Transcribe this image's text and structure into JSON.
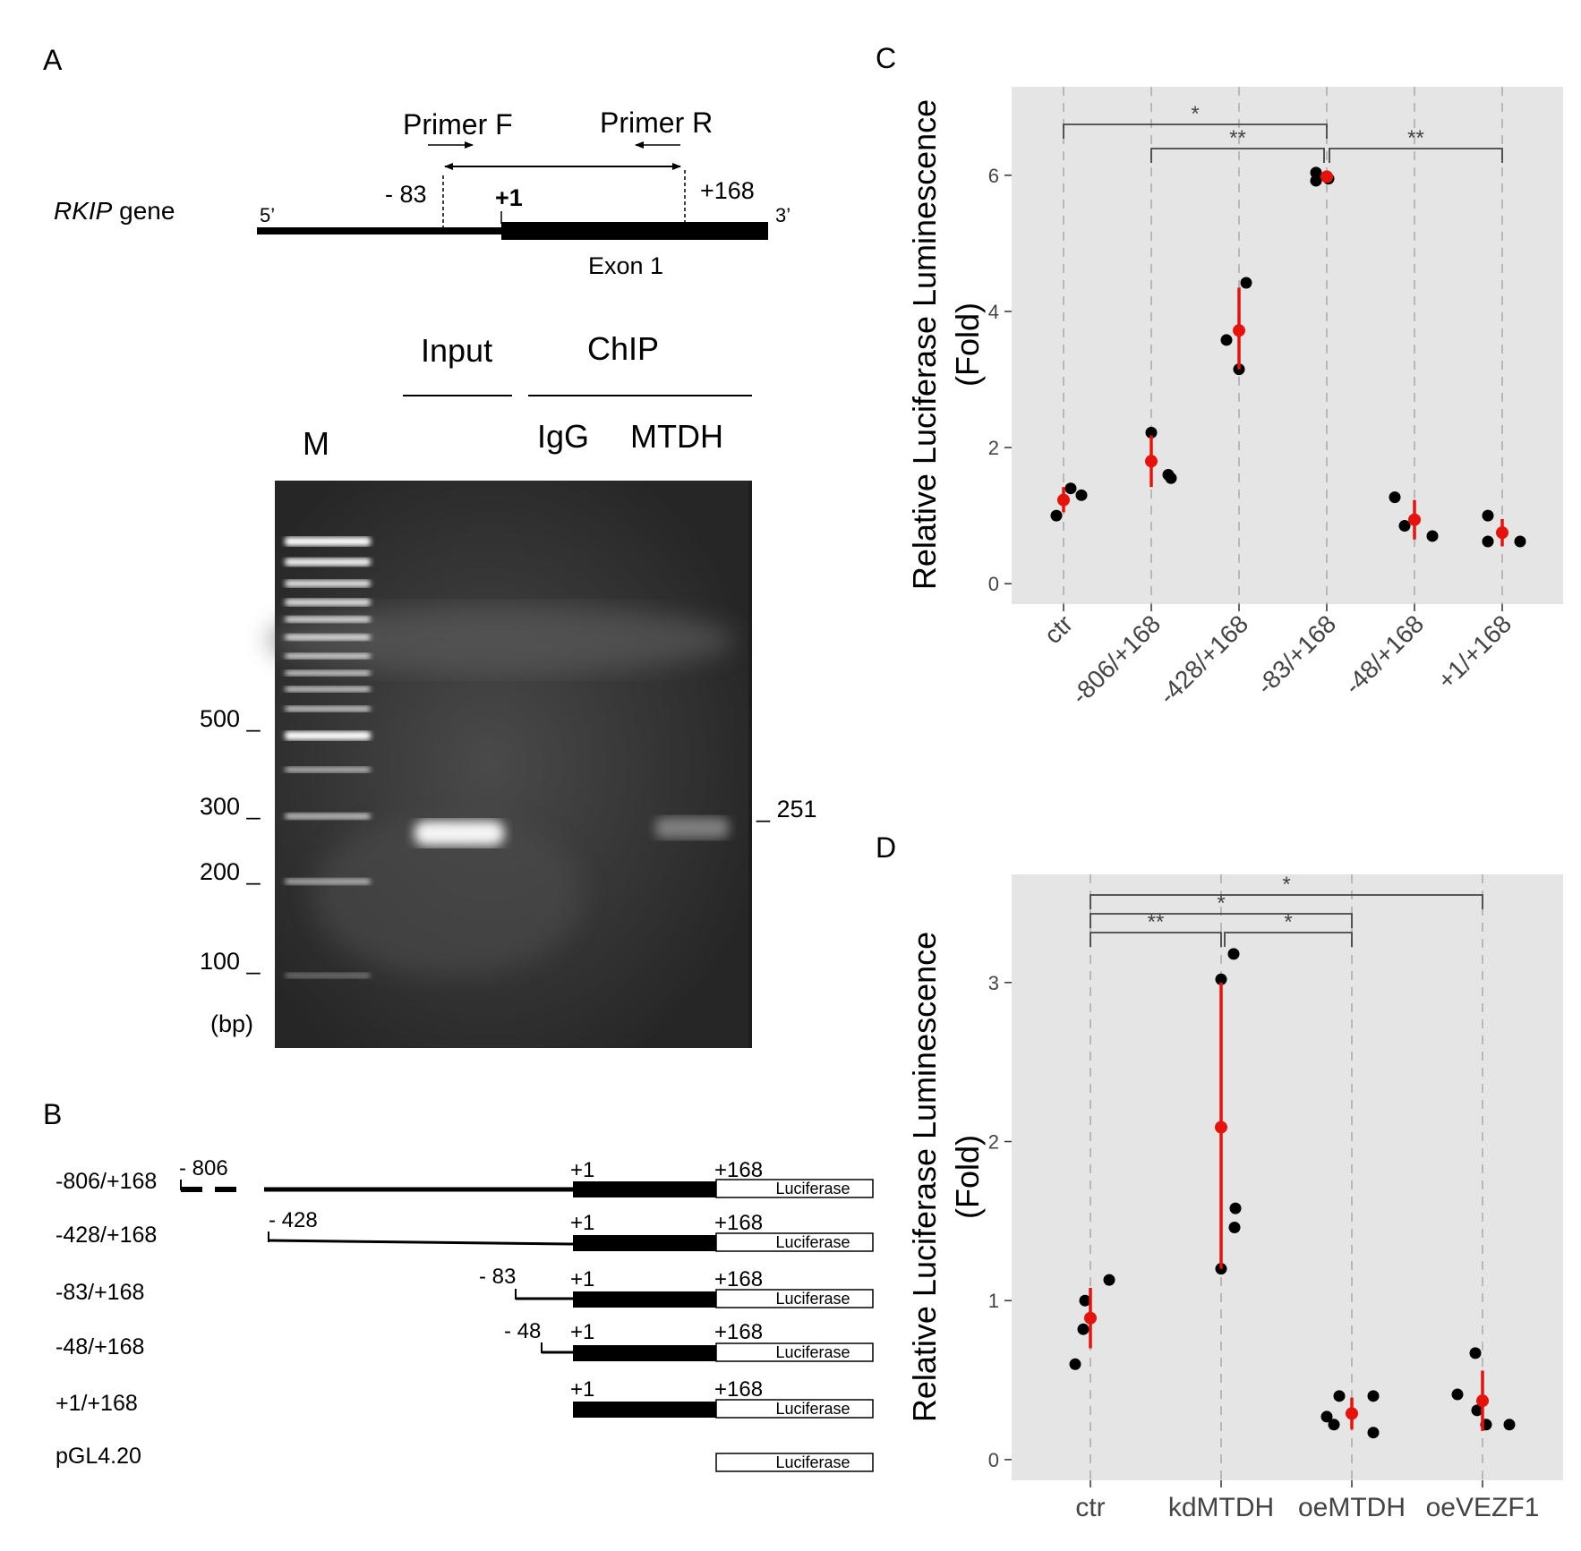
{
  "panel_labels": {
    "a": "A",
    "b": "B",
    "c": "C",
    "d": "D"
  },
  "panel_a": {
    "gene_italic": "RKIP",
    "gene_suffix": " gene",
    "five_prime": "5’",
    "three_prime": "3’",
    "pos_minus83": "- 83",
    "pos_plus1": "+1",
    "pos_plus168": "+168",
    "primer_f": "Primer F",
    "primer_r": "Primer R",
    "exon": "Exon 1",
    "input": "Input",
    "chip": "ChIP",
    "igg": "IgG",
    "mtdh": "MTDH",
    "marker": "M",
    "size_labels": [
      "500 _",
      "300 _",
      "200 _",
      "100 _"
    ],
    "bp": "(bp)",
    "band_label": "_ 251"
  },
  "panel_b": {
    "luciferase": "Luciferase",
    "constructs": [
      {
        "name": "-806/+168",
        "start": "- 806",
        "plus1": "+1",
        "end": "+168"
      },
      {
        "name": "-428/+168",
        "start": "- 428",
        "plus1": "+1",
        "end": "+168"
      },
      {
        "name": "-83/+168",
        "start": "- 83",
        "plus1": "+1",
        "end": "+168"
      },
      {
        "name": "-48/+168",
        "start": "- 48",
        "plus1": "+1",
        "end": "+168"
      },
      {
        "name": "+1/+168",
        "start": "",
        "plus1": "+1",
        "end": "+168"
      },
      {
        "name": "pGL4.20",
        "start": "",
        "plus1": "",
        "end": ""
      }
    ]
  },
  "chart_data": [
    {
      "id": "C",
      "type": "scatter",
      "ylabel_line1": "Relative Luciferase Luminescence",
      "ylabel_line2": "(Fold)",
      "ylim": [
        -0.3,
        7.3
      ],
      "yticks": [
        0,
        2,
        4,
        6
      ],
      "ytick_labels": [
        "0",
        "2",
        "4",
        "6"
      ],
      "categories": [
        "ctr",
        "-806/+168",
        "-428/+168",
        "-83/+168",
        "-48/+168",
        "+1/+168"
      ],
      "points": [
        [
          1.0,
          1.4,
          1.3
        ],
        [
          2.22,
          1.6,
          1.55
        ],
        [
          3.58,
          3.15,
          4.42
        ],
        [
          6.04,
          5.95,
          5.92
        ],
        [
          1.27,
          0.85,
          0.7
        ],
        [
          1.0,
          0.62,
          0.62
        ]
      ],
      "mean": [
        1.23,
        1.8,
        3.72,
        5.98,
        0.94,
        0.75
      ],
      "err_low": [
        1.05,
        1.42,
        3.15,
        5.9,
        0.65,
        0.55
      ],
      "err_high": [
        1.42,
        2.18,
        4.35,
        6.06,
        1.23,
        0.95
      ],
      "brackets": [
        {
          "from": 0,
          "to": 3,
          "label": "*"
        },
        {
          "from": 1,
          "to": 3,
          "label": "**"
        },
        {
          "from": 3,
          "to": 5,
          "label": "**"
        }
      ]
    },
    {
      "id": "D",
      "type": "scatter",
      "ylabel_line1": "Relative Luciferase Luminescence",
      "ylabel_line2": "(Fold)",
      "ylim": [
        -0.13,
        3.68
      ],
      "yticks": [
        0,
        1,
        2,
        3
      ],
      "ytick_labels": [
        "0",
        "1",
        "2",
        "3"
      ],
      "categories": [
        "ctr",
        "kdMTDH",
        "oeMTDH",
        "oeVEZF1"
      ],
      "points": [
        [
          1.0,
          0.6,
          0.82,
          1.13
        ],
        [
          3.02,
          3.18,
          1.2,
          1.58,
          1.46
        ],
        [
          0.4,
          0.27,
          0.22,
          0.17,
          0.4
        ],
        [
          0.67,
          0.41,
          0.31,
          0.22,
          0.22
        ]
      ],
      "mean": [
        0.89,
        2.09,
        0.29,
        0.37
      ],
      "err_low": [
        0.7,
        1.2,
        0.19,
        0.18
      ],
      "err_high": [
        1.08,
        3.0,
        0.39,
        0.56
      ],
      "brackets": [
        {
          "from": 0,
          "to": 3,
          "label": "*"
        },
        {
          "from": 0,
          "to": 2,
          "label": "*"
        },
        {
          "from": 0,
          "to": 1,
          "label": "**"
        },
        {
          "from": 1,
          "to": 2,
          "label": "*"
        }
      ]
    }
  ]
}
